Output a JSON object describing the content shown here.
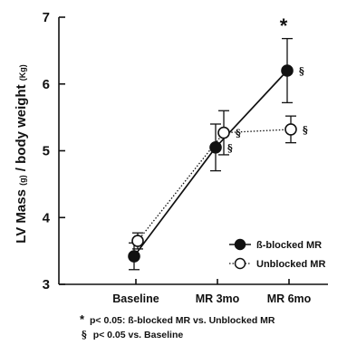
{
  "chart_data": {
    "type": "line",
    "ylabel_main": "LV Mass",
    "ylabel_unit1": "(g)",
    "ylabel_mid": " / body weight",
    "ylabel_unit2": "(Kg)",
    "xlabel": "",
    "ylim": [
      3,
      7
    ],
    "yticks": [
      "3",
      "4",
      "5",
      "6",
      "7"
    ],
    "categories": [
      "Baseline",
      "MR 3mo",
      "MR 6mo"
    ],
    "series": [
      {
        "name": "ß-blocked MR",
        "marker": "filled-circle",
        "line": "solid",
        "color": "#111111",
        "values": [
          3.42,
          5.05,
          6.2
        ],
        "err": [
          0.2,
          0.35,
          0.48
        ],
        "sig": [
          "",
          "§",
          "§"
        ]
      },
      {
        "name": "Unblocked MR",
        "marker": "open-circle",
        "line": "dotted",
        "color": "#111111",
        "values": [
          3.65,
          5.27,
          5.32
        ],
        "err": [
          0.12,
          0.33,
          0.2
        ],
        "sig": [
          "",
          "§",
          "§"
        ]
      }
    ],
    "annotations": {
      "star": "*",
      "star_category": "MR 6mo",
      "footnote_star": "p< 0.05: ß-blocked MR vs. Unblocked MR",
      "footnote_sig": "p< 0.05 vs. Baseline",
      "star_symbol": "*",
      "sig_symbol": "§"
    },
    "legend_position": "bottom-right",
    "grid": false
  }
}
